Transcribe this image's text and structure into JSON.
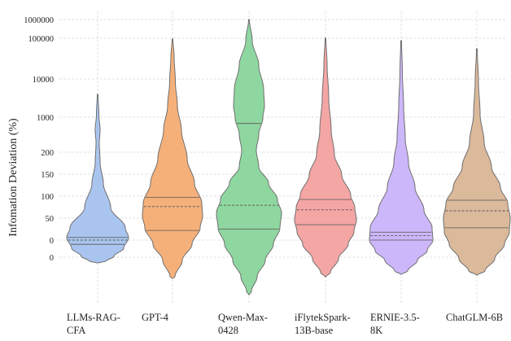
{
  "chart_data": {
    "type": "violin",
    "ylabel": "Infomation Deviation (%)",
    "yticks": [
      "1000000",
      "100000",
      "10000",
      "1000",
      "200",
      "150",
      "100",
      "50",
      "0",
      "0"
    ],
    "categories": [
      [
        "LLMs-RAG-",
        "CFA"
      ],
      [
        "GPT-4"
      ],
      [
        "Qwen-Max-",
        "0428"
      ],
      [
        "iFlytekSpark-",
        "13B-base"
      ],
      [
        "ERNIE-3.5-",
        "8K"
      ],
      [
        "ChatGLM-6B"
      ]
    ],
    "colors": [
      "#a9c5ef",
      "#f5b07a",
      "#8fd7a0",
      "#f4a6a4",
      "#cdb7fb",
      "#dbb99b"
    ],
    "series": [
      {
        "min": -20,
        "q1": -4,
        "median": 0,
        "q3": 6,
        "max": 3500
      },
      {
        "min": -40,
        "q1": 22,
        "median": 72,
        "q3": 96,
        "max": 90000
      },
      {
        "min": -60,
        "q1": 25,
        "median": 75,
        "q3": 750,
        "max": 800000
      },
      {
        "min": -40,
        "q1": 35,
        "median": 65,
        "q3": 90,
        "max": 90000
      },
      {
        "min": -40,
        "q1": 0,
        "median": 10,
        "q3": 18,
        "max": 70000
      },
      {
        "min": -40,
        "q1": 28,
        "median": 63,
        "q3": 88,
        "max": 50000
      }
    ],
    "grid": true
  }
}
